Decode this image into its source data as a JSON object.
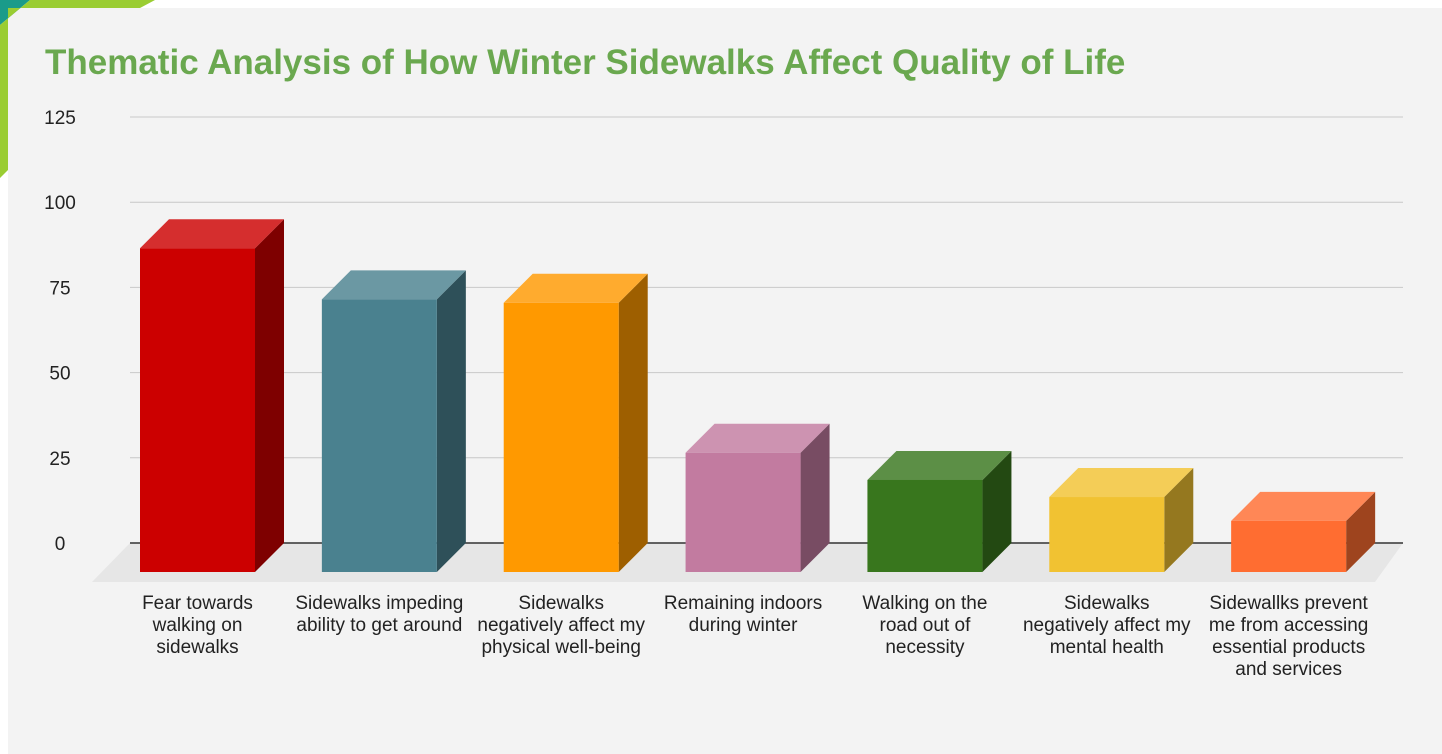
{
  "chart_data": {
    "type": "bar3d",
    "title": "Thematic Analysis of How Winter Sidewalks Affect Quality of Life",
    "categories": [
      "Fear towards walking on sidewalks",
      "Sidewalks impeding ability to get around",
      "Sidewalks negatively affect my physical well-being",
      "Remaining indoors during winter",
      "Walking on the road out of necessity",
      "Sidewalks negatively affect my mental health",
      "Sidewallks prevent me from accessing essential products and services"
    ],
    "values": [
      95,
      80,
      79,
      35,
      27,
      22,
      15
    ],
    "colors": [
      "#cc0000",
      "#4a818f",
      "#ff9900",
      "#c27ba0",
      "#38761d",
      "#f1c232",
      "#ff6d31"
    ],
    "ylim": [
      0,
      125
    ],
    "yticks": [
      0,
      25,
      50,
      75,
      100,
      125
    ],
    "grid": true
  }
}
